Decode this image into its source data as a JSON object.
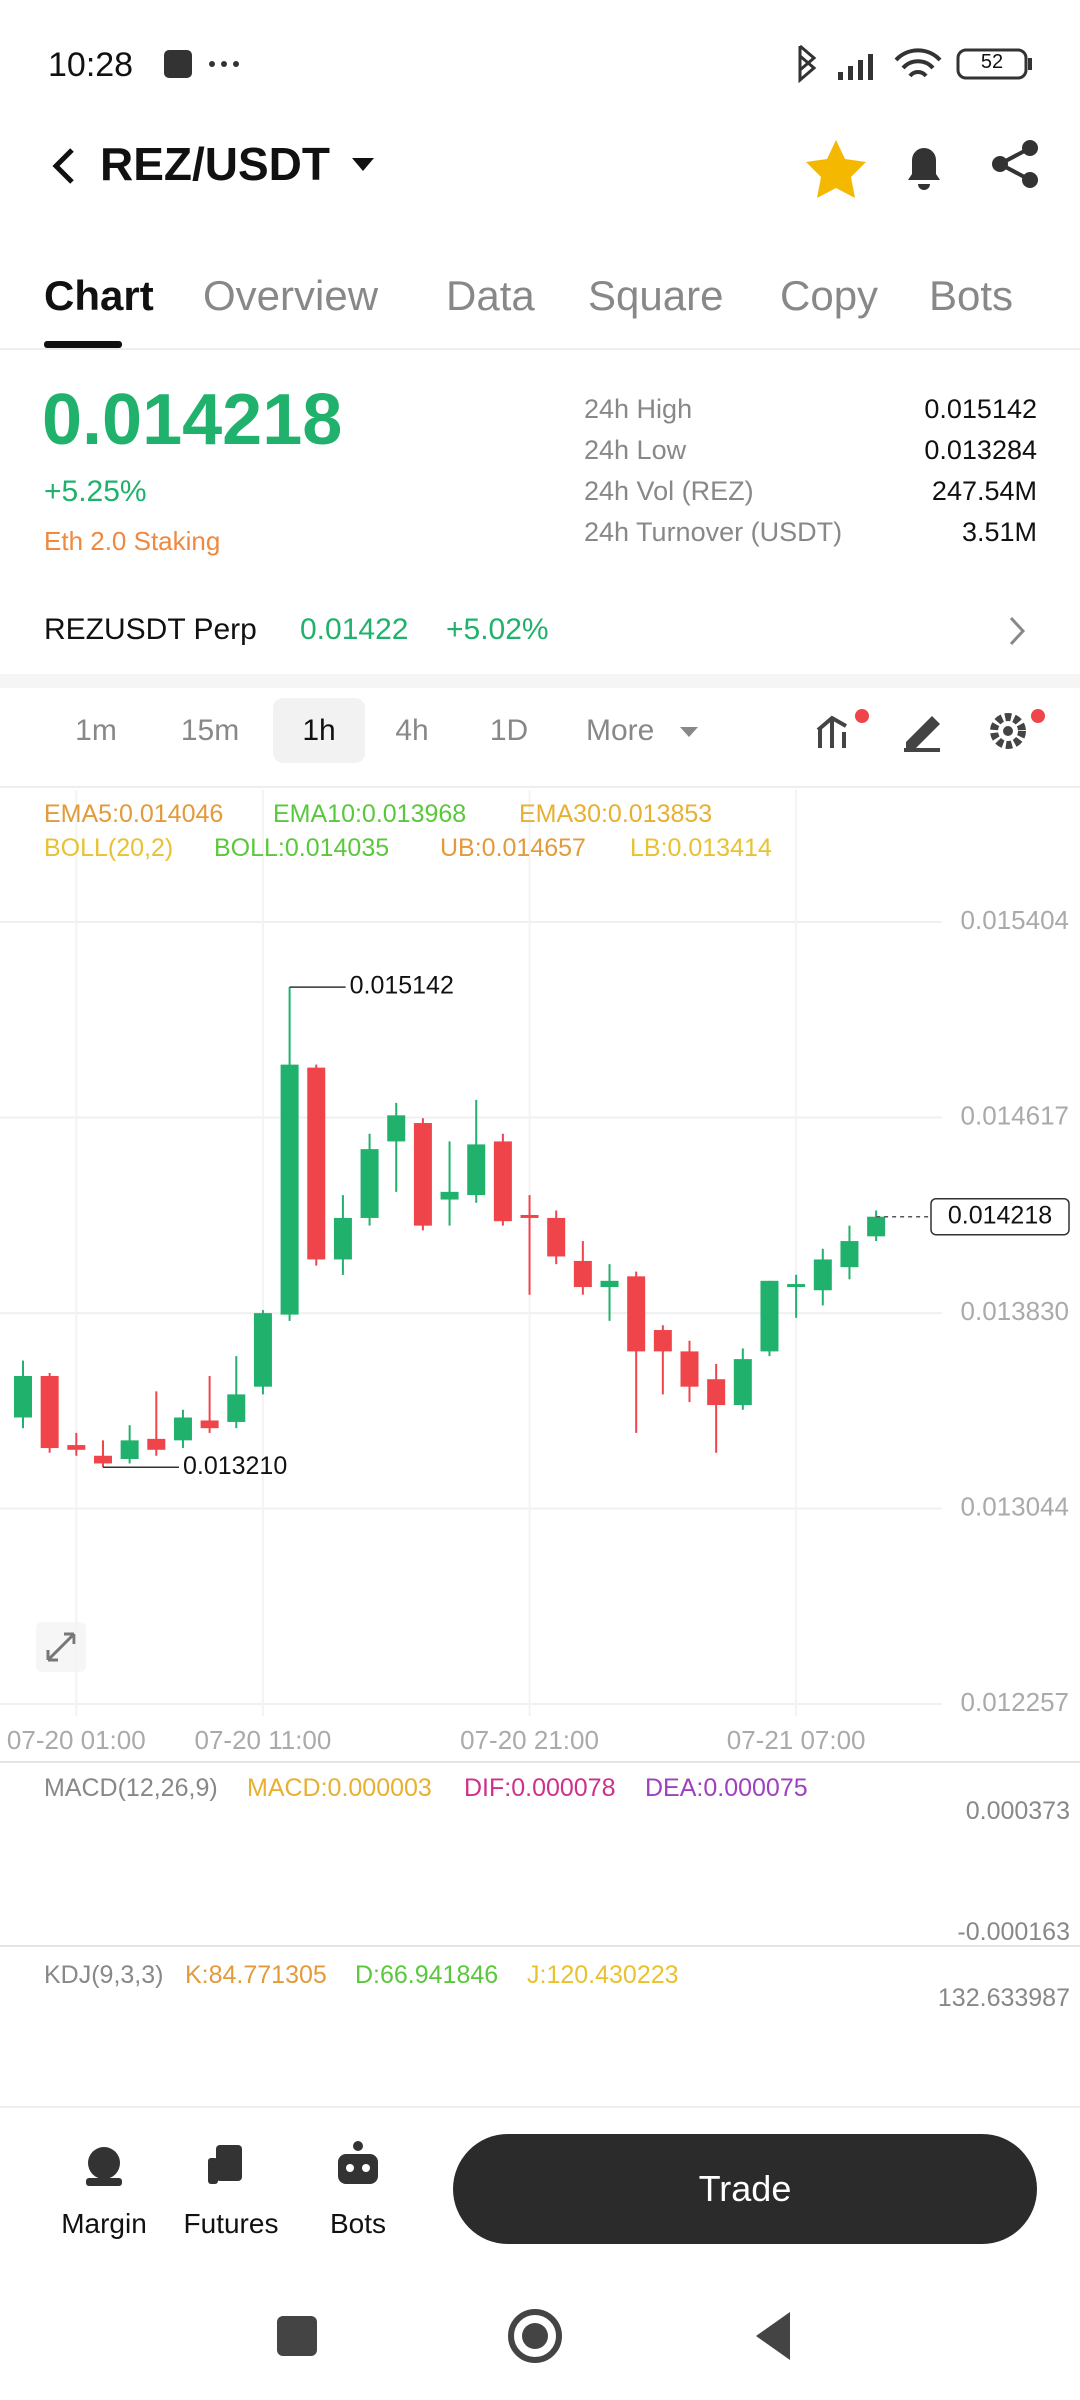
{
  "status": {
    "time": "10:28",
    "battery": "52"
  },
  "header": {
    "pair": "REZ/USDT"
  },
  "tabs": [
    "Chart",
    "Overview",
    "Data",
    "Square",
    "Copy",
    "Bots"
  ],
  "ticker": {
    "price": "0.014218",
    "change": "+5.25%",
    "tag": "Eth 2.0 Staking"
  },
  "stats": [
    {
      "label": "24h High",
      "value": "0.015142"
    },
    {
      "label": "24h Low",
      "value": "0.013284"
    },
    {
      "label": "24h Vol (REZ)",
      "value": "247.54M"
    },
    {
      "label": "24h Turnover (USDT)",
      "value": "3.51M"
    }
  ],
  "perp": {
    "name": "REZUSDT Perp",
    "price": "0.01422",
    "change": "+5.02%"
  },
  "intervals": [
    "1m",
    "15m",
    "1h",
    "4h",
    "1D",
    "More"
  ],
  "indicators": {
    "line1": [
      "EMA5:0.014046",
      "EMA10:0.013968",
      "EMA30:0.013853"
    ],
    "line2": [
      "BOLL(20,2)",
      "BOLL:0.014035",
      "UB:0.014657",
      "LB:0.013414"
    ]
  },
  "chart_data": {
    "type": "candlestick",
    "categories": [
      null,
      null,
      "07-20 01:00",
      null,
      null,
      null,
      null,
      null,
      null,
      "07-20 11:00",
      null,
      null,
      null,
      null,
      null,
      null,
      null,
      null,
      null,
      "07-20 21:00",
      null,
      null,
      null,
      null,
      null,
      null,
      null,
      null,
      null,
      "07-21 07:00",
      null,
      null,
      null
    ],
    "open": [
      0.01341,
      0.013577,
      0.013299,
      0.013256,
      0.013243,
      0.013324,
      0.013318,
      0.013398,
      0.013392,
      0.013534,
      0.013824,
      0.014818,
      0.014046,
      0.014213,
      0.014521,
      0.014595,
      0.014287,
      0.014305,
      0.014521,
      0.014225,
      0.014213,
      0.01404,
      0.013935,
      0.013978,
      0.013762,
      0.013676,
      0.013564,
      0.01346,
      0.013676,
      0.013935,
      0.013922,
      0.014015,
      0.014139
    ],
    "high": [
      0.013639,
      0.013589,
      0.013348,
      0.013318,
      0.013379,
      0.013515,
      0.013441,
      0.013577,
      0.013657,
      0.013842,
      0.015142,
      0.01483,
      0.014305,
      0.014552,
      0.014676,
      0.014614,
      0.014521,
      0.014688,
      0.014552,
      0.014305,
      0.014243,
      0.01412,
      0.014027,
      0.013997,
      0.013781,
      0.013719,
      0.013626,
      0.013688,
      0.01396,
      0.013984,
      0.014089,
      0.014182,
      0.014243
    ],
    "low": [
      0.013367,
      0.013268,
      0.013256,
      0.01321,
      0.013225,
      0.013256,
      0.013287,
      0.013348,
      0.013367,
      0.013503,
      0.013799,
      0.014021,
      0.013984,
      0.014182,
      0.014318,
      0.014163,
      0.014182,
      0.014274,
      0.014182,
      0.013904,
      0.014027,
      0.013904,
      0.013799,
      0.013348,
      0.013503,
      0.013472,
      0.013268,
      0.013441,
      0.013657,
      0.013811,
      0.013861,
      0.013966,
      0.01412
    ],
    "close": [
      0.013577,
      0.013287,
      0.01328,
      0.013225,
      0.013318,
      0.01328,
      0.01341,
      0.013367,
      0.013503,
      0.01383,
      0.01483,
      0.014046,
      0.014213,
      0.01449,
      0.014626,
      0.014182,
      0.014318,
      0.014509,
      0.0142,
      0.014213,
      0.014058,
      0.013935,
      0.01396,
      0.013676,
      0.013676,
      0.013534,
      0.01346,
      0.013645,
      0.01396,
      0.013947,
      0.014046,
      0.01412,
      0.014218
    ],
    "up_color": "#20b26c",
    "down_color": "#ef454a",
    "ylim": [
      0.012257,
      0.015404
    ],
    "yticks": [
      0.012257,
      0.013044,
      {
        "value": 0.01383,
        "label": "0.013830"
      },
      0.014617,
      0.015404
    ],
    "grid": true,
    "annotations": [
      0.015142,
      {
        "value": 0.01321,
        "label": "0.013210"
      }
    ],
    "last_price": 0.014218
  },
  "macd": {
    "labels": [
      "MACD(12,26,9)",
      "MACD:0.000003",
      "DIF:0.000078",
      "DEA:0.000075"
    ],
    "ticks": [
      "0.000373",
      "-0.000163"
    ]
  },
  "kdj": {
    "labels": [
      "KDJ(9,3,3)",
      "K:84.771305",
      "D:66.941846",
      "J:120.430223"
    ],
    "ticks": [
      "132.633987"
    ]
  },
  "bottom": {
    "items": [
      "Margin",
      "Futures",
      "Bots"
    ],
    "trade": "Trade"
  }
}
